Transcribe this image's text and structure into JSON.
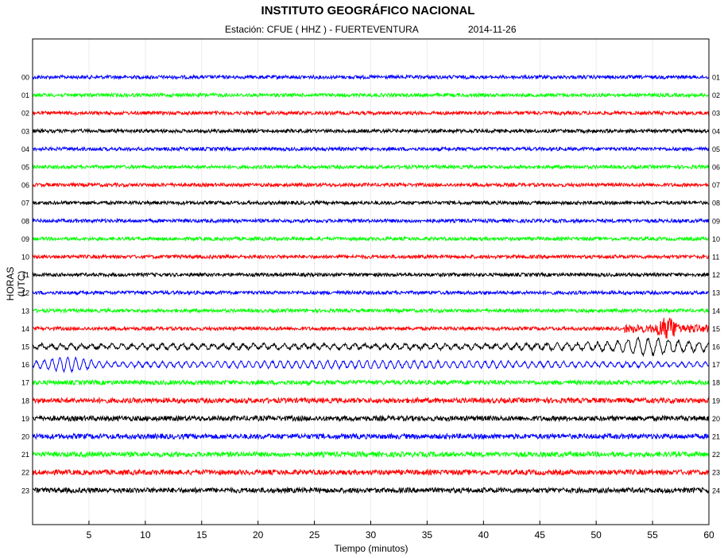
{
  "header": {
    "title": "INSTITUTO GEOGRÁFICO NACIONAL",
    "station": "Estación:  CFUE ( HHZ ) - FUERTEVENTURA",
    "date": "2014-11-26"
  },
  "chart_data": {
    "type": "line",
    "title": "INSTITUTO GEOGRÁFICO NACIONAL",
    "xlabel": "Tiempo (minutos)",
    "ylabel": "HORAS (UTC)",
    "xlim": [
      0,
      60
    ],
    "x_ticks": [
      5,
      10,
      15,
      20,
      25,
      30,
      35,
      40,
      45,
      50,
      55,
      60
    ],
    "grid": "vertical",
    "left_labels": [
      "00",
      "01",
      "02",
      "03",
      "04",
      "05",
      "06",
      "07",
      "08",
      "09",
      "10",
      "11",
      "12",
      "13",
      "14",
      "15",
      "16",
      "17",
      "18",
      "19",
      "20",
      "21",
      "22",
      "23"
    ],
    "right_labels": [
      "01",
      "02",
      "03",
      "04",
      "05",
      "06",
      "07",
      "08",
      "09",
      "10",
      "11",
      "12",
      "13",
      "14",
      "15",
      "16",
      "17",
      "18",
      "19",
      "20",
      "21",
      "22",
      "23",
      "24"
    ],
    "trace_colors": [
      "#0000ff",
      "#00ff00",
      "#ff0000",
      "#000000"
    ],
    "color_cycle": "blue, green, red, black",
    "events": [
      {
        "hour_row": "14",
        "start_min": 52.5,
        "end_min": 60,
        "description_level": "high",
        "peak_min": 56.3
      },
      {
        "hour_row": "15",
        "start_min": 0,
        "end_min": 60,
        "description_level": "medium",
        "peak_min": 54.5
      },
      {
        "hour_row": "16",
        "start_min": 0,
        "end_min": 6,
        "description_level": "medium",
        "peak_min": 3
      }
    ]
  }
}
